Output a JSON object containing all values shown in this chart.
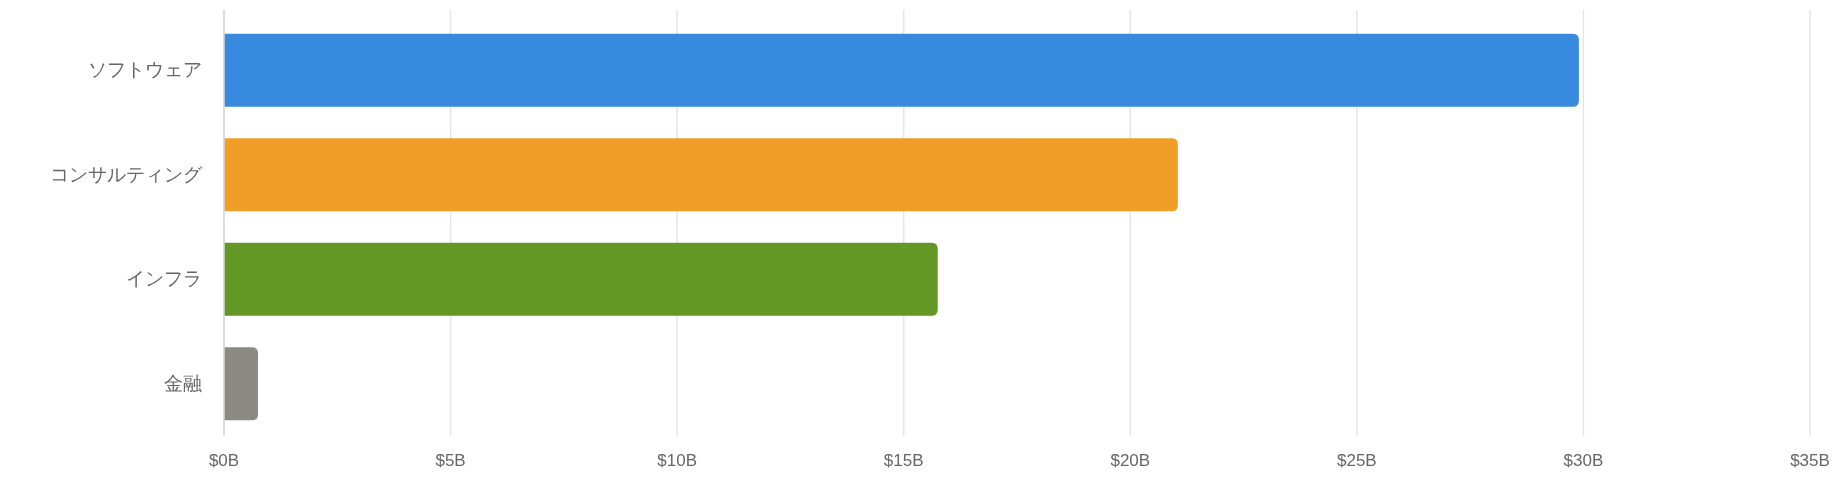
{
  "chart_data": {
    "type": "bar",
    "orientation": "horizontal",
    "categories": [
      "ソフトウェア",
      "コンサルティング",
      "インフラ",
      "金融"
    ],
    "values": [
      29.9,
      21.05,
      15.75,
      0.75
    ],
    "colors": [
      "#388ade",
      "#f09e28",
      "#649824",
      "#8a8a82"
    ],
    "xlim": [
      0,
      35
    ],
    "xticks": [
      {
        "value": 0,
        "label": "$0B"
      },
      {
        "value": 5,
        "label": "$5B"
      },
      {
        "value": 10,
        "label": "$10B"
      },
      {
        "value": 15,
        "label": "$15B"
      },
      {
        "value": 20,
        "label": "$20B"
      },
      {
        "value": 25,
        "label": "$25B"
      },
      {
        "value": 30,
        "label": "$30B"
      },
      {
        "value": 35,
        "label": "$35B"
      }
    ],
    "grid": "x"
  }
}
